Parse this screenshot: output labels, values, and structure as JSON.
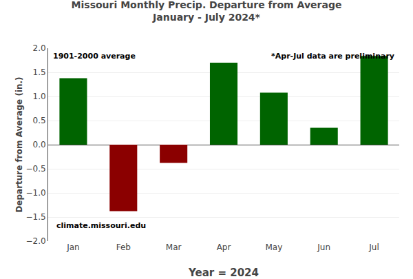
{
  "chart_data": {
    "type": "bar",
    "title": "Missouri Monthly Precip. Departure from Average",
    "subtitle": "January - July 2024*",
    "x_label": "Year = 2024",
    "y_label": "Departure from Average (in.)",
    "categories": [
      "Jan",
      "Feb",
      "Mar",
      "Apr",
      "May",
      "Jun",
      "Jul"
    ],
    "values": [
      1.38,
      -1.38,
      -0.38,
      1.7,
      1.08,
      0.35,
      1.84
    ],
    "colors": [
      "#006400",
      "#8B0000",
      "#8B0000",
      "#006400",
      "#006400",
      "#006400",
      "#006400"
    ],
    "ylim": [
      -2.0,
      2.0
    ],
    "yticks": [
      {
        "value": -2.0,
        "label": "−2.0"
      },
      {
        "value": -1.5,
        "label": "−1.5"
      },
      {
        "value": -1.0,
        "label": "−1.0"
      },
      {
        "value": -0.5,
        "label": "−0.5"
      },
      {
        "value": 0.0,
        "label": "0.0"
      },
      {
        "value": 0.5,
        "label": "0.5"
      },
      {
        "value": 1.0,
        "label": "1.0"
      },
      {
        "value": 1.5,
        "label": "1.5"
      },
      {
        "value": 2.0,
        "label": "2.0"
      }
    ],
    "grid": true,
    "annotations": [
      "1901-2000 average",
      "*Apr-Jul data are preliminary",
      "climate.missouri.edu"
    ]
  }
}
